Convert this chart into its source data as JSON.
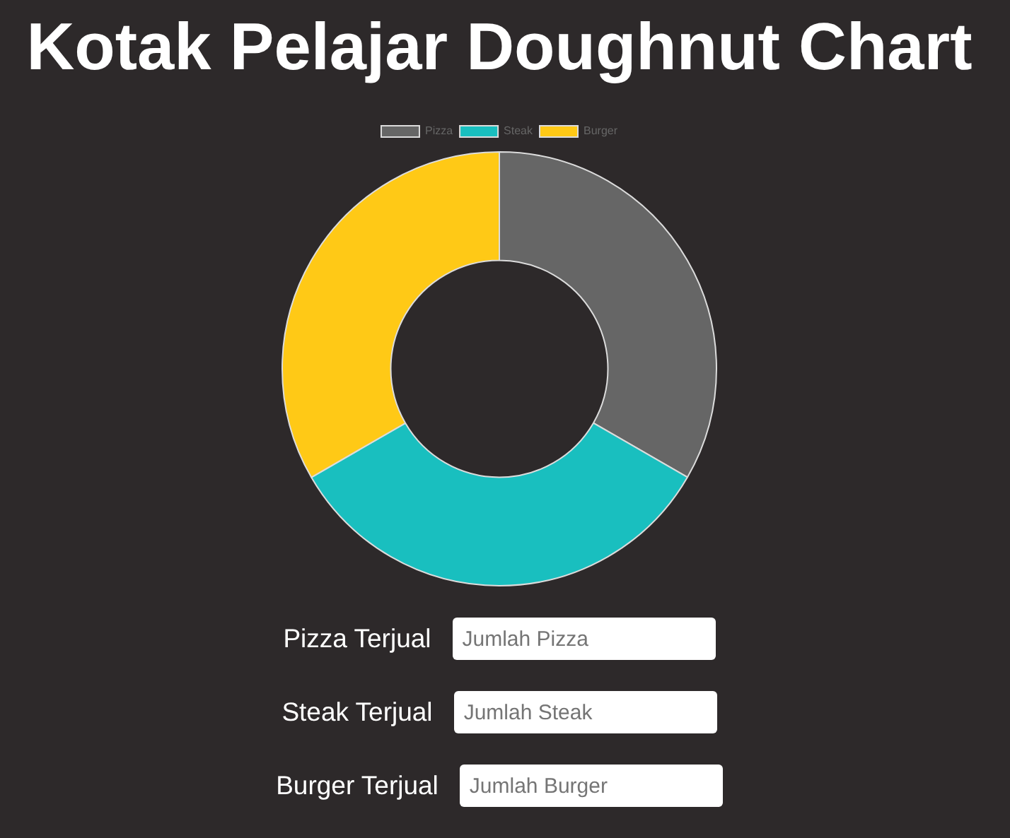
{
  "chart_data": {
    "type": "donut",
    "title": "Kotak Pelajar Doughnut Chart",
    "categories": [
      "Pizza",
      "Steak",
      "Burger"
    ],
    "values": [
      33.33,
      33.33,
      33.34
    ],
    "colors": [
      "#666666",
      "#19bfbf",
      "#ffc916"
    ],
    "legend": "top",
    "annotations": [
      "Pizza Terjual",
      "Jumlah Pizza",
      "Steak Terjual",
      "Jumlah Steak",
      "Burger Terjual",
      "Jumlah Burger"
    ]
  }
}
